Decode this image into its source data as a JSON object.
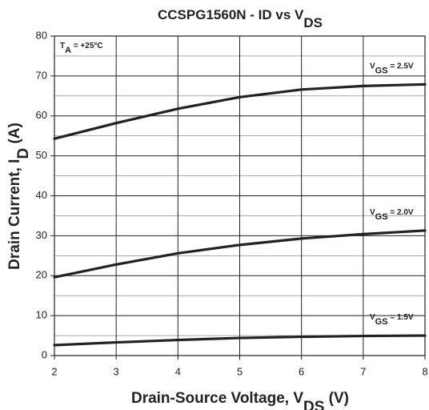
{
  "chart_data": {
    "type": "line",
    "title": [
      "CCSPG1560N - ID vs V",
      "DS"
    ],
    "x_label": [
      "Drain-Source Voltage, V",
      "DS",
      " (V)"
    ],
    "y_label": [
      "Drain Current, I",
      "D",
      " (A)"
    ],
    "annotation": [
      "T",
      "A",
      " = +25°C"
    ],
    "x": [
      2,
      3,
      4,
      5,
      6,
      7,
      8
    ],
    "series": [
      {
        "name": [
          "V",
          "GS",
          " = 2.5V"
        ],
        "color": "#222222",
        "values": [
          54.3,
          58.2,
          61.8,
          64.7,
          66.6,
          67.5,
          67.9
        ]
      },
      {
        "name": [
          "V",
          "GS",
          " = 2.0V"
        ],
        "color": "#222222",
        "values": [
          19.6,
          22.8,
          25.6,
          27.7,
          29.3,
          30.4,
          31.3
        ]
      },
      {
        "name": [
          "V",
          "GS",
          " = 1.5V"
        ],
        "color": "#222222",
        "values": [
          2.6,
          3.3,
          3.9,
          4.4,
          4.7,
          4.9,
          5.0
        ]
      }
    ],
    "xlim": [
      2,
      8
    ],
    "xticks": [
      2,
      3,
      4,
      5,
      6,
      7,
      8
    ],
    "ylim": [
      0,
      80
    ],
    "yticks": [
      0,
      10,
      20,
      30,
      40,
      50,
      60,
      70,
      80
    ],
    "minor_yticks": [
      5,
      15,
      25,
      35,
      45,
      55,
      65,
      75
    ],
    "grid": true
  }
}
